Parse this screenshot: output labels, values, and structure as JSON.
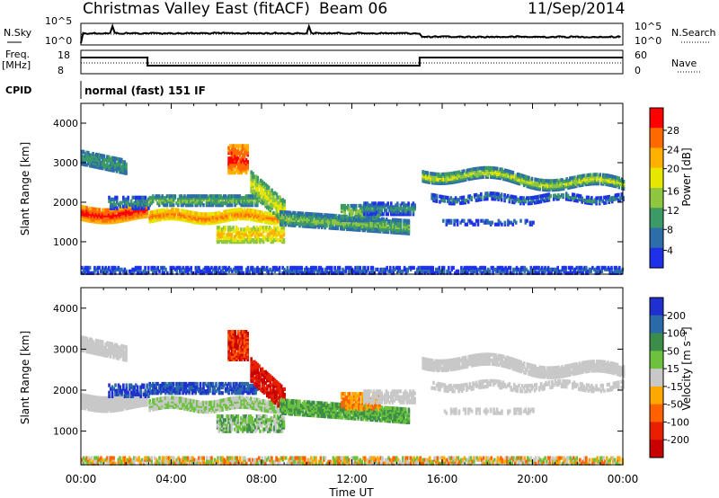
{
  "header": {
    "title": "Christmas Valley East (fitACF)",
    "beam": "Beam 06",
    "date": "11/Sep/2014"
  },
  "params": {
    "nsky_label": "N.Sky",
    "nsearch_label": "N.Search",
    "freq_label": "Freq.",
    "freq_unit": "[MHz]",
    "nave_label": "Nave",
    "cpid_label": "CPID",
    "cpid_value": "normal (fast) 151 IF",
    "noise_ticks_left": [
      "10^5",
      "10^0"
    ],
    "noise_ticks_right": [
      "10^5",
      "10^0"
    ],
    "freq_ticks": [
      "18",
      "8"
    ],
    "nave_ticks": [
      "60",
      "0"
    ]
  },
  "colorbars": {
    "power": {
      "label": "Power [dB]",
      "ticks": [
        "28",
        "24",
        "20",
        "16",
        "12",
        "8",
        "4"
      ],
      "colors": [
        "#ff0000",
        "#ff6a00",
        "#ffb000",
        "#e6e600",
        "#8fc640",
        "#3c9a66",
        "#2d6eaa",
        "#1e30e8"
      ]
    },
    "velocity": {
      "label": "Velocity [m s⁻¹]",
      "ticks": [
        "200",
        "100",
        "50",
        "15",
        "-15",
        "-50",
        "-100",
        "-200"
      ],
      "colors": [
        "#2030d0",
        "#2a6aa8",
        "#3c8c4a",
        "#6cc23c",
        "#c8c8c8",
        "#ffa800",
        "#ff6000",
        "#e82000",
        "#c80000"
      ]
    }
  },
  "chart_data": [
    {
      "type": "heatmap",
      "name": "power",
      "ylabel": "Slant Range [km]",
      "yticks": [
        "4000",
        "3000",
        "2000",
        "1000"
      ],
      "ylim": [
        180,
        4500
      ],
      "xlim_hours": [
        0,
        24
      ],
      "xticks": [
        "00:00",
        "04:00",
        "08:00",
        "12:00",
        "16:00",
        "20:00",
        "00:00"
      ],
      "zlabel": "Power [dB]"
    },
    {
      "type": "heatmap",
      "name": "velocity",
      "ylabel": "Slant Range [km]",
      "yticks": [
        "4000",
        "3000",
        "2000",
        "1000"
      ],
      "ylim": [
        180,
        4500
      ],
      "xlim_hours": [
        0,
        24
      ],
      "xticks": [
        "00:00",
        "04:00",
        "08:00",
        "12:00",
        "16:00",
        "20:00",
        "00:00"
      ],
      "xlabel": "Time UT",
      "zlabel": "Velocity [m s⁻¹]"
    }
  ]
}
